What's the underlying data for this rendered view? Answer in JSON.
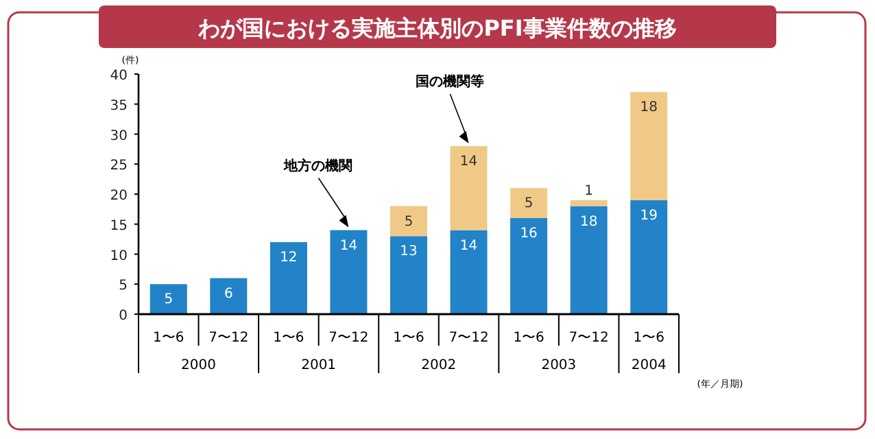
{
  "chart_data": {
    "type": "bar",
    "stacked": true,
    "title": "わが国における実施主体別のPFI事業件数の推移",
    "ylabel": "(件)",
    "xlabel": "(年／月期)",
    "categories": [
      "1〜6",
      "7〜12",
      "1〜6",
      "7〜12",
      "1〜6",
      "7〜12",
      "1〜6",
      "7〜12",
      "1〜6"
    ],
    "annotations": [
      "2000",
      "2001",
      "2002",
      "2003",
      "2004"
    ],
    "series": [
      {
        "name": "地方の機関",
        "color": "#2283c8",
        "values": [
          5,
          6,
          12,
          14,
          13,
          14,
          16,
          18,
          19
        ]
      },
      {
        "name": "国の機関等",
        "color": "#f0c987",
        "values": [
          null,
          null,
          null,
          null,
          5,
          14,
          5,
          1,
          18
        ]
      }
    ],
    "ylim": [
      0,
      40
    ],
    "yticks": [
      0,
      5,
      10,
      15,
      20,
      25,
      30,
      35,
      40
    ],
    "data_labels": true
  }
}
